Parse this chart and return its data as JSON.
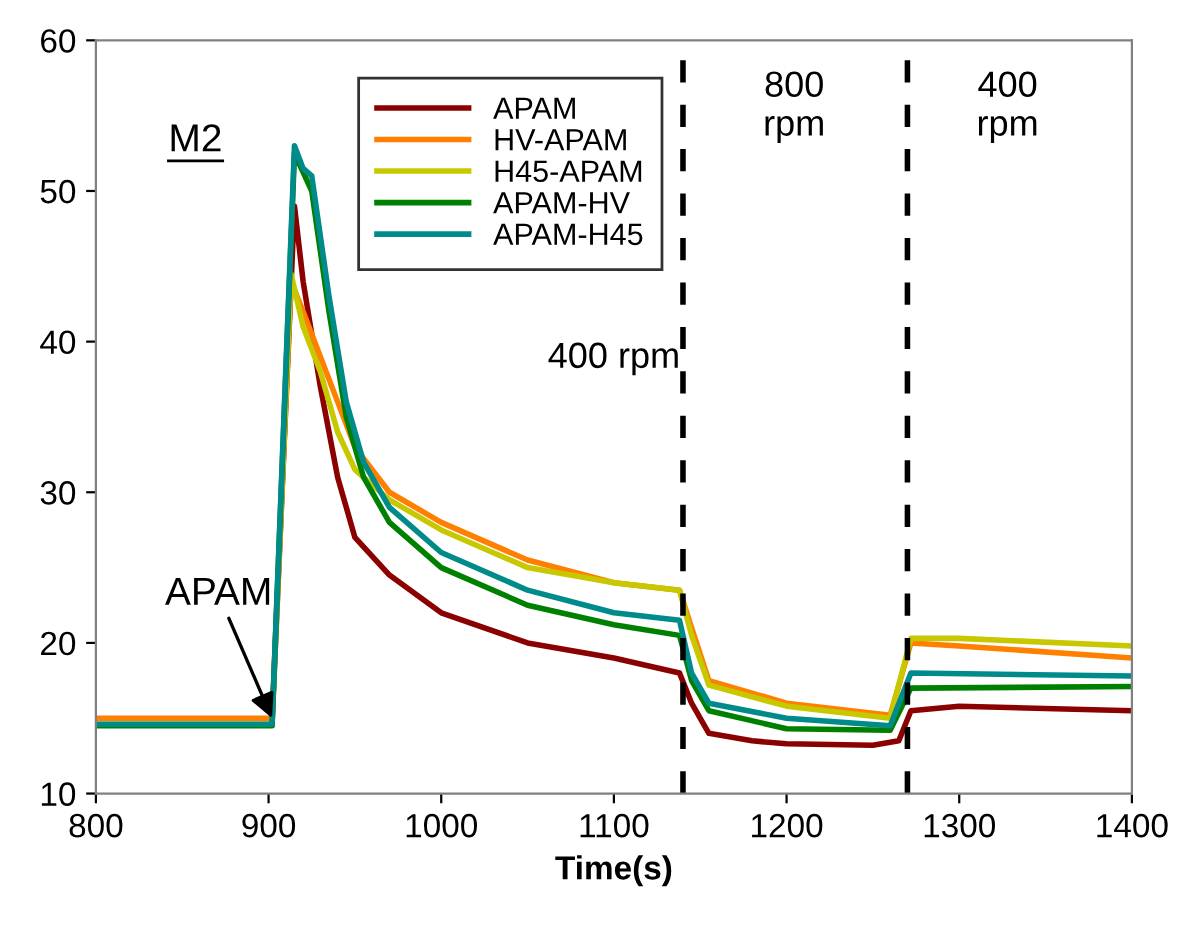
{
  "chart_data": {
    "type": "line",
    "xlabel": "Time(s)",
    "xlim": [
      800,
      1400
    ],
    "xticks": [
      800,
      900,
      1000,
      1100,
      1200,
      1300,
      1400
    ],
    "ylim": [
      10,
      60
    ],
    "yticks": [
      10,
      20,
      30,
      40,
      50,
      60
    ],
    "grid": false,
    "legend": "top",
    "marker": "none",
    "line_style": "solid",
    "ref_lines": [
      {
        "axis": "x",
        "value": 1140,
        "color": "#000000",
        "line_style": "dashed"
      },
      {
        "axis": "x",
        "value": 1270,
        "color": "#000000",
        "line_style": "dashed"
      }
    ],
    "annotations": [
      "M2",
      "400 rpm",
      "800\nrpm",
      "400\nrpm",
      {
        "text": "APAM",
        "x": 902,
        "y": 15
      }
    ],
    "series": [
      {
        "name": "APAM",
        "color": "#8b0000",
        "x": [
          902,
          915,
          920,
          930,
          940,
          950,
          970,
          1000,
          1050,
          1100,
          1138,
          1145,
          1155,
          1180,
          1200,
          1250,
          1265,
          1272,
          1300,
          1400
        ],
        "values": [
          14.6,
          49,
          44,
          37,
          31,
          27,
          24.5,
          22,
          20,
          19,
          18,
          16,
          14,
          13.5,
          13.3,
          13.2,
          13.5,
          15.5,
          15.8,
          15.5
        ]
      },
      {
        "name": "HV-APAM",
        "color": "#ff8000",
        "x": [
          800,
          902,
          913,
          920,
          930,
          940,
          950,
          970,
          1000,
          1050,
          1100,
          1138,
          1145,
          1155,
          1200,
          1260,
          1272,
          1300,
          1400
        ],
        "values": [
          15,
          15,
          44,
          42,
          39,
          36,
          33,
          30,
          28,
          25.5,
          24,
          23.5,
          21,
          17.5,
          16,
          15.2,
          20,
          19.8,
          19
        ]
      },
      {
        "name": "H45-APAM",
        "color": "#c8c800",
        "x": [
          800,
          902,
          913,
          920,
          930,
          940,
          950,
          970,
          1000,
          1050,
          1100,
          1138,
          1145,
          1155,
          1200,
          1260,
          1272,
          1300,
          1400
        ],
        "values": [
          14.6,
          14.6,
          44.5,
          41,
          38,
          34,
          31.5,
          29.5,
          27.5,
          25,
          24,
          23.5,
          20.5,
          17.2,
          15.8,
          15,
          20.3,
          20.3,
          19.8
        ]
      },
      {
        "name": "APAM-HV",
        "color": "#008000",
        "x": [
          800,
          902,
          915,
          925,
          935,
          945,
          955,
          970,
          1000,
          1050,
          1100,
          1138,
          1145,
          1155,
          1200,
          1260,
          1272,
          1400
        ],
        "values": [
          14.5,
          14.5,
          52.5,
          50,
          42,
          35,
          31,
          28,
          25,
          22.5,
          21.2,
          20.5,
          17.5,
          15.5,
          14.3,
          14.2,
          17,
          17.1
        ]
      },
      {
        "name": "APAM-H45",
        "color": "#008b8b",
        "x": [
          800,
          902,
          915,
          920,
          925,
          935,
          945,
          955,
          970,
          1000,
          1050,
          1100,
          1138,
          1145,
          1155,
          1200,
          1260,
          1272,
          1400
        ],
        "values": [
          14.6,
          14.6,
          53,
          51.5,
          51,
          43,
          36,
          32,
          29,
          26,
          23.5,
          22,
          21.5,
          18,
          16,
          15,
          14.5,
          18,
          17.8
        ]
      }
    ]
  }
}
